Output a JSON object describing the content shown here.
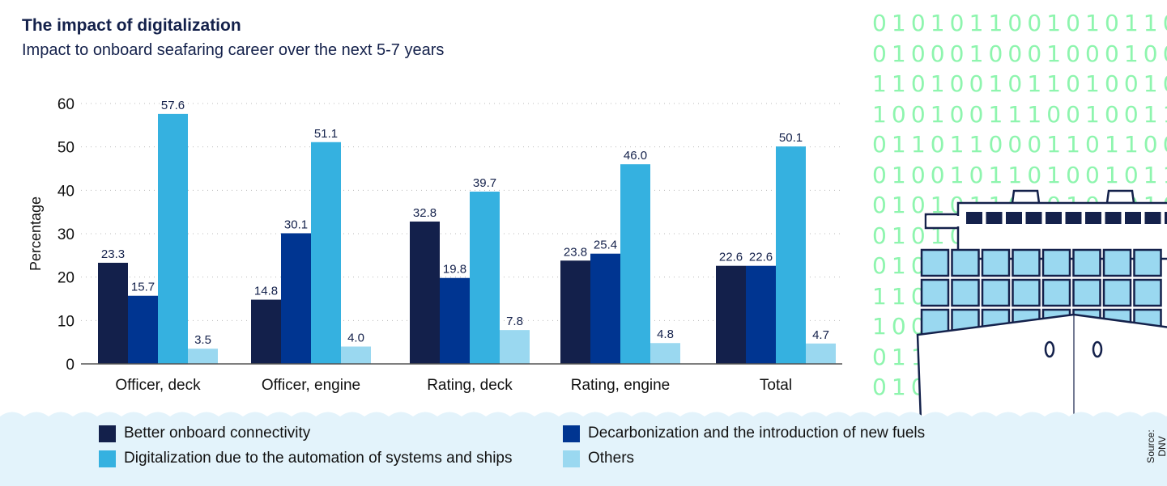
{
  "title": "The impact of digitalization",
  "subtitle": "Impact to onboard seafaring career over the next 5-7 years",
  "source": "Source: DNV",
  "decoration": {
    "binary_rows": [
      "0101011001010110",
      "0100010001000100",
      "1101001011010010",
      "1001001110010011",
      "0110110001101100",
      "0100101101001011",
      "0101011010101010",
      "01010",
      "010",
      "110",
      "100",
      "011",
      "010"
    ],
    "ship_icon": "container-ship"
  },
  "colors": {
    "better_connectivity": "#13204b",
    "decarbonization": "#003591",
    "digitalization": "#35b1e0",
    "others": "#9ad8f0",
    "binary_text": "#8ef5ae",
    "water": "#e3f3fb"
  },
  "chart_data": {
    "type": "bar",
    "title": "The impact of digitalization",
    "subtitle": "Impact to onboard seafaring career over the next 5-7 years",
    "xlabel": "",
    "ylabel": "Percentage",
    "ylim": [
      0,
      60
    ],
    "yticks": [
      0,
      10,
      20,
      30,
      40,
      50,
      60
    ],
    "grid": "horizontal dotted",
    "legend_position": "bottom",
    "categories": [
      "Officer, deck",
      "Officer, engine",
      "Rating, deck",
      "Rating, engine",
      "Total"
    ],
    "series": [
      {
        "name": "Better onboard connectivity",
        "values": [
          23.3,
          14.8,
          32.8,
          23.8,
          22.6
        ]
      },
      {
        "name": "Decarbonization and the introduction of new fuels",
        "values": [
          15.7,
          30.1,
          19.8,
          25.4,
          22.6
        ]
      },
      {
        "name": "Digitalization due to the automation of systems and ships",
        "values": [
          57.6,
          51.1,
          39.7,
          46.0,
          50.1
        ]
      },
      {
        "name": "Others",
        "values": [
          3.5,
          4.0,
          7.8,
          4.8,
          4.7
        ]
      }
    ]
  }
}
